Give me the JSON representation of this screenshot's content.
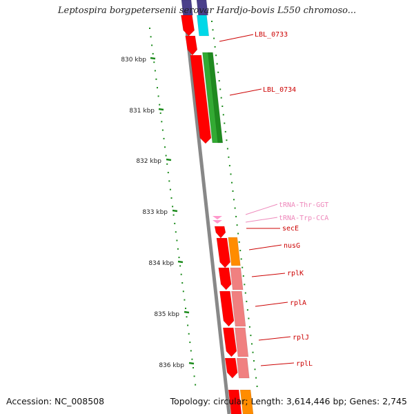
{
  "title": "Leptospira borgpetersenii serovar Hardjo-bovis L550 chromoso...",
  "scale_labels": [
    {
      "label": "830 kbp"
    },
    {
      "label": "831 kbp"
    },
    {
      "label": "832 kbp"
    },
    {
      "label": "833 kbp"
    },
    {
      "label": "834 kbp"
    },
    {
      "label": "835 kbp"
    },
    {
      "label": "836 kbp"
    }
  ],
  "gene_labels": [
    {
      "label": "LBL_0733",
      "color": "#cc0000"
    },
    {
      "label": "LBL_0734",
      "color": "#cc0000"
    },
    {
      "label": "tRNA-Thr-GGT",
      "color": "#ee88bb"
    },
    {
      "label": "tRNA-Trp-CCA",
      "color": "#ee88bb"
    },
    {
      "label": "secE",
      "color": "#cc0000"
    },
    {
      "label": "nusG",
      "color": "#cc0000"
    },
    {
      "label": "rplK",
      "color": "#cc0000"
    },
    {
      "label": "rplA",
      "color": "#cc0000"
    },
    {
      "label": "rplJ",
      "color": "#cc0000"
    },
    {
      "label": "rplL",
      "color": "#cc0000"
    }
  ],
  "colors": {
    "cds": "#ff0000",
    "green_feature": "#33aa33",
    "cyan_feature": "#00d8e8",
    "purple_feature": "#4a3f8a",
    "orange_feature": "#ff8c00",
    "pink_feature": "#f08080",
    "trna": "#ff99cc",
    "backbone": "#888888",
    "scale_dots": "#1a8a1a"
  },
  "footer": {
    "accession": "Accession: NC_008508",
    "summary": "Topology: circular; Length: 3,614,446 bp; Genes: 2,745"
  }
}
